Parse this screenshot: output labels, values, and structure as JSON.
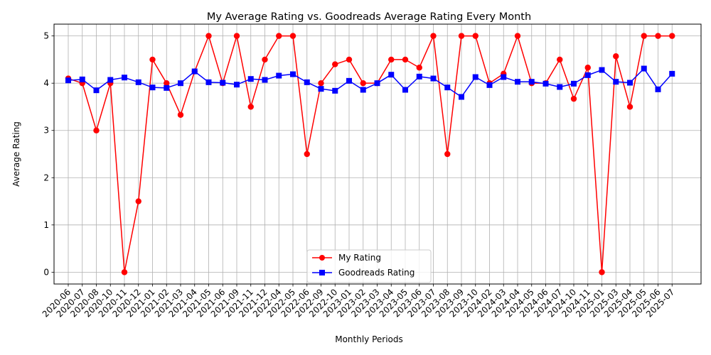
{
  "chart_data": {
    "type": "line",
    "title": "My Average Rating vs. Goodreads Average Rating Every Month",
    "xlabel": "Monthly Periods",
    "ylabel": "Average Rating",
    "ylim": [
      -0.25,
      5.25
    ],
    "yticks": [
      0,
      1,
      2,
      3,
      4,
      5
    ],
    "grid": true,
    "legend_position": "lower center",
    "categories": [
      "2020-06",
      "2020-07",
      "2020-08",
      "2020-10",
      "2020-11",
      "2020-12",
      "2021-01",
      "2021-02",
      "2021-03",
      "2021-04",
      "2021-05",
      "2021-06",
      "2021-09",
      "2021-11",
      "2021-12",
      "2022-04",
      "2022-05",
      "2022-06",
      "2022-09",
      "2022-10",
      "2023-01",
      "2023-02",
      "2023-03",
      "2023-04",
      "2023-05",
      "2023-06",
      "2023-07",
      "2023-08",
      "2023-09",
      "2023-10",
      "2024-02",
      "2024-03",
      "2024-04",
      "2024-05",
      "2024-06",
      "2024-07",
      "2024-10",
      "2024-11",
      "2025-01",
      "2025-03",
      "2025-04",
      "2025-05",
      "2025-06",
      "2025-07"
    ],
    "series": [
      {
        "name": "My Rating",
        "color": "#ff0000",
        "marker": "circle",
        "values": [
          4.1,
          4.0,
          3.0,
          4.0,
          0.0,
          1.5,
          4.5,
          4.0,
          3.33,
          4.25,
          5.0,
          4.0,
          5.0,
          3.5,
          4.5,
          5.0,
          5.0,
          2.5,
          4.0,
          4.4,
          4.5,
          4.0,
          4.0,
          4.5,
          4.5,
          4.33,
          5.0,
          2.5,
          5.0,
          5.0,
          4.0,
          4.2,
          5.0,
          4.0,
          4.0,
          4.5,
          3.67,
          4.33,
          0.0,
          4.57,
          3.5,
          5.0,
          5.0,
          5.0
        ]
      },
      {
        "name": "Goodreads Rating",
        "color": "#0000ff",
        "marker": "square",
        "values": [
          4.06,
          4.08,
          3.85,
          4.07,
          4.12,
          4.02,
          3.91,
          3.9,
          4.0,
          4.25,
          4.02,
          4.01,
          3.97,
          4.09,
          4.07,
          4.16,
          4.19,
          4.02,
          3.88,
          3.84,
          4.05,
          3.86,
          4.0,
          4.18,
          3.86,
          4.14,
          4.1,
          3.91,
          3.71,
          4.13,
          3.96,
          4.13,
          4.03,
          4.03,
          3.99,
          3.92,
          3.99,
          4.17,
          4.28,
          4.03,
          4.01,
          4.31,
          3.87,
          4.2
        ]
      }
    ]
  }
}
